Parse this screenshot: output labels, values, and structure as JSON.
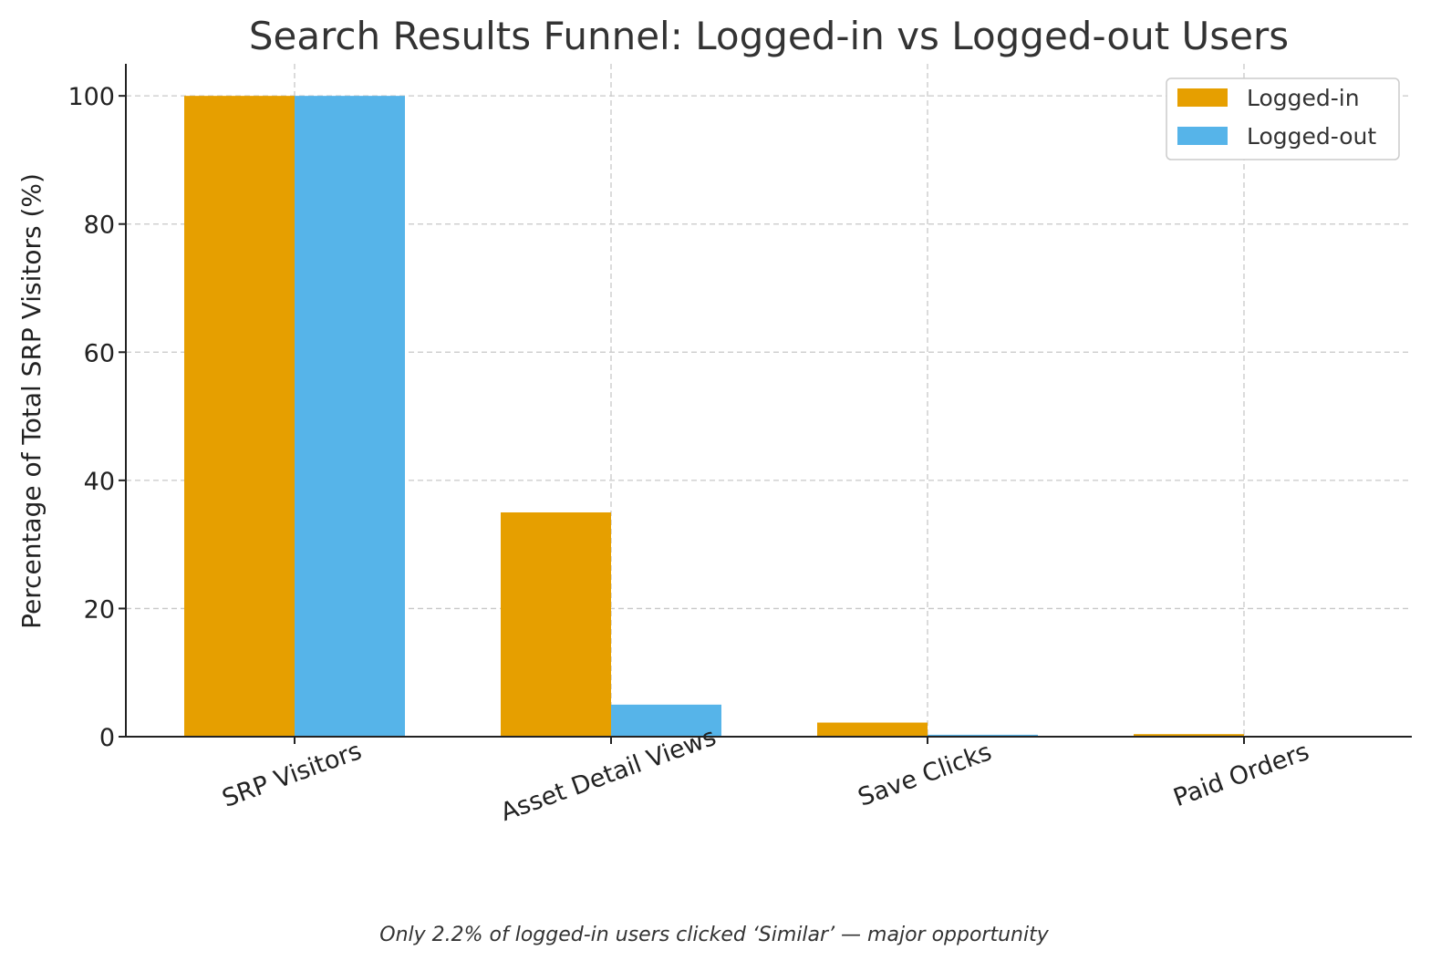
{
  "chart_data": {
    "type": "bar",
    "title": "Search Results Funnel: Logged-in vs Logged-out Users",
    "xlabel": "",
    "ylabel": "Percentage of Total SRP Visitors (%)",
    "categories": [
      "SRP Visitors",
      "Asset Detail Views",
      "Save Clicks",
      "Paid Orders"
    ],
    "series": [
      {
        "name": "Logged-in",
        "color": "#E69F00",
        "values": [
          100,
          35,
          2.2,
          0.4
        ]
      },
      {
        "name": "Logged-out",
        "color": "#56B4E9",
        "values": [
          100,
          5,
          0.3,
          0.05
        ]
      }
    ],
    "ylim": [
      0,
      105
    ],
    "yticks": [
      "0",
      "20",
      "40",
      "60",
      "80",
      "100"
    ],
    "grid": true,
    "legend_position": "top-right",
    "caption": "Only 2.2% of logged-in users clicked ‘Similar’ — major opportunity"
  }
}
